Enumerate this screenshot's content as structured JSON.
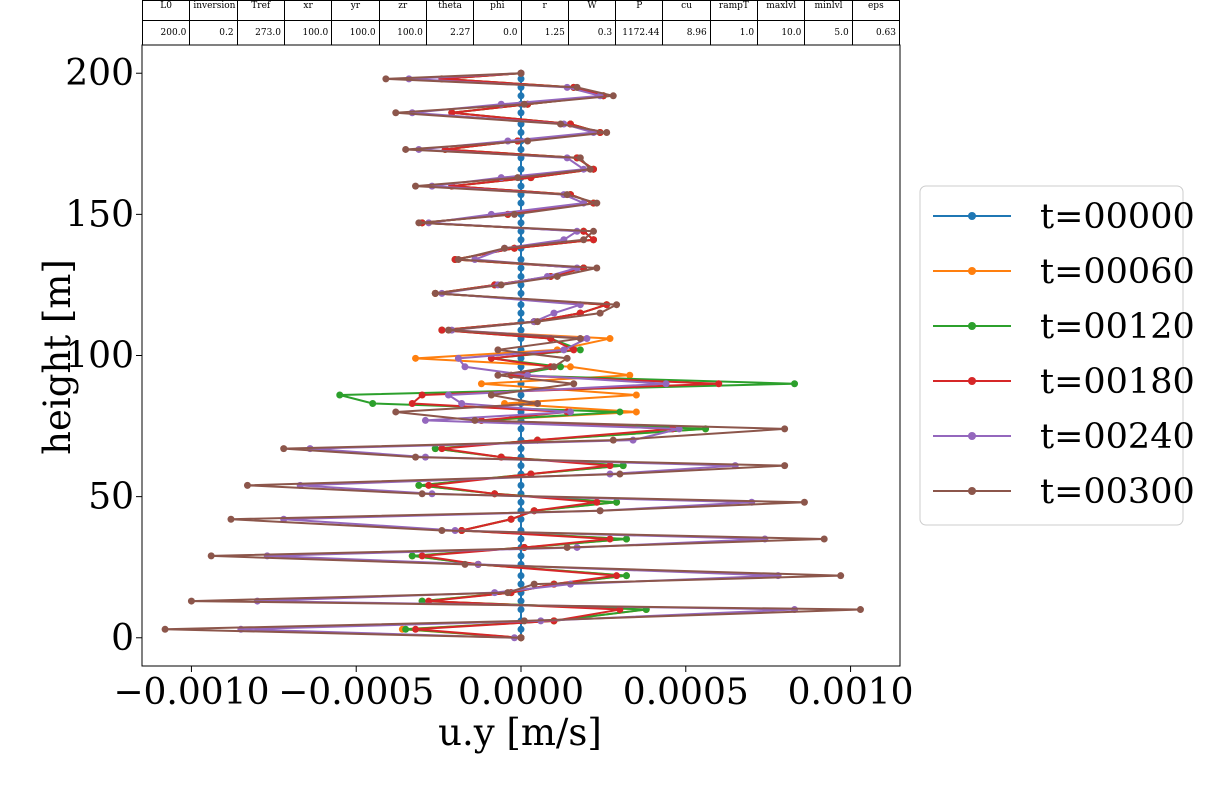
{
  "params": {
    "headers": [
      "L0",
      "inversion",
      "Tref",
      "xr",
      "yr",
      "zr",
      "theta",
      "phi",
      "r",
      "W",
      "P",
      "cu",
      "rampT",
      "maxlvl",
      "minlvl",
      "eps"
    ],
    "values": [
      "200.0",
      "0.2",
      "273.0",
      "100.0",
      "100.0",
      "100.0",
      "2.27",
      "0.0",
      "1.25",
      "0.3",
      "1172.44",
      "8.96",
      "1.0",
      "10.0",
      "5.0",
      "0.63"
    ]
  },
  "chart_data": {
    "type": "line",
    "title": "",
    "xlabel": "u.y [m/s]",
    "ylabel": "height [m]",
    "xlim": [
      -0.00115,
      0.00115
    ],
    "ylim": [
      -10,
      210
    ],
    "xticks": [
      -0.001,
      -0.0005,
      0.0,
      0.0005,
      0.001
    ],
    "xtick_labels": [
      "−0.0010",
      "−0.0005",
      "0.0000",
      "0.0005",
      "0.0010"
    ],
    "yticks": [
      0,
      50,
      100,
      150,
      200
    ],
    "ytick_labels": [
      "0",
      "50",
      "100",
      "150",
      "200"
    ],
    "grid": false,
    "legend_position": "outside-right",
    "y": [
      0,
      3,
      6,
      10,
      13,
      16,
      19,
      22,
      26,
      29,
      32,
      35,
      38,
      42,
      45,
      48,
      51,
      54,
      58,
      61,
      64,
      67,
      70,
      74,
      77,
      80,
      83,
      86,
      90,
      93,
      96,
      99,
      102,
      106,
      109,
      112,
      115,
      118,
      122,
      125,
      128,
      131,
      134,
      138,
      141,
      144,
      147,
      150,
      154,
      157,
      160,
      163,
      166,
      170,
      173,
      176,
      179,
      182,
      186,
      189,
      192,
      195,
      198,
      200
    ],
    "series": [
      {
        "name": "t=00000",
        "color": "#1f77b4",
        "x": [
          0,
          0,
          0,
          0,
          0,
          0,
          0,
          0,
          0,
          0,
          0,
          0,
          0,
          0,
          0,
          0,
          0,
          0,
          0,
          0,
          0,
          0,
          0,
          0,
          0,
          0,
          0,
          0,
          0,
          0,
          0,
          0,
          0,
          0,
          0,
          0,
          0,
          0,
          0,
          0,
          0,
          0,
          0,
          0,
          0,
          0,
          0,
          0,
          0,
          0,
          0,
          0,
          0,
          0,
          0,
          0,
          0,
          0,
          0,
          0,
          0,
          0,
          0,
          0
        ]
      },
      {
        "name": "t=00060",
        "color": "#ff7f0e",
        "x": [
          0.0,
          -0.00036,
          0.0001,
          0.00038,
          -0.0003,
          -3e-05,
          0.0001,
          0.00032,
          -0.00013,
          -0.00033,
          1e-05,
          0.00032,
          -0.00018,
          -3e-05,
          4e-05,
          0.00029,
          -8e-05,
          -0.00031,
          3e-05,
          0.00031,
          -6e-05,
          -0.00026,
          5e-05,
          0.00056,
          -0.00012,
          0.00035,
          -5e-05,
          0.00035,
          -0.00012,
          0.00033,
          0.00015,
          -0.00032,
          0.00011,
          0.00027,
          -0.00024,
          4e-05,
          0.00018,
          0.00026,
          -0.00026,
          -8e-05,
          9e-05,
          0.00019,
          -0.0002,
          -2e-05,
          0.00022,
          0.00019,
          -0.0003,
          -4e-05,
          0.00022,
          0.00015,
          -0.00021,
          3e-05,
          0.00022,
          0.00017,
          -0.00023,
          -1e-05,
          0.00024,
          0.00015,
          -0.00021,
          2e-05,
          0.00025,
          0.00016,
          -0.00024,
          0.0
        ]
      },
      {
        "name": "t=00120",
        "color": "#2ca02c",
        "x": [
          0.0,
          -0.00035,
          0.0001,
          0.00038,
          -0.0003,
          -3e-05,
          0.0001,
          0.00032,
          -0.00013,
          -0.00033,
          1e-05,
          0.00032,
          -0.00018,
          -3e-05,
          4e-05,
          0.00029,
          -8e-05,
          -0.00031,
          3e-05,
          0.00031,
          -6e-05,
          -0.00026,
          5e-05,
          0.00056,
          -0.00012,
          0.0003,
          -0.00045,
          -0.00055,
          0.00083,
          -3e-05,
          0.00012,
          -9e-05,
          0.00018,
          9e-05,
          -0.00024,
          4e-05,
          0.00018,
          0.00026,
          -0.00026,
          -8e-05,
          9e-05,
          0.00019,
          -0.0002,
          -2e-05,
          0.00022,
          0.00019,
          -0.0003,
          -4e-05,
          0.00022,
          0.00015,
          -0.00021,
          3e-05,
          0.00022,
          0.00017,
          -0.00023,
          -1e-05,
          0.00024,
          0.00015,
          -0.00021,
          2e-05,
          0.00025,
          0.00016,
          -0.00024,
          0.0
        ]
      },
      {
        "name": "t=00180",
        "color": "#d62728",
        "x": [
          0.0,
          -0.00032,
          0.0001,
          0.0003,
          -0.00028,
          -3e-05,
          0.0001,
          0.00029,
          -0.00013,
          -0.0003,
          1e-05,
          0.00027,
          -0.00018,
          -3e-05,
          4e-05,
          0.00023,
          -8e-05,
          -0.00028,
          3e-05,
          0.00027,
          -6e-05,
          -0.00024,
          5e-05,
          0.00046,
          -0.00012,
          0.00014,
          -0.00033,
          -0.0003,
          0.0006,
          -3e-05,
          9e-05,
          -9e-05,
          0.00016,
          9e-05,
          -0.00024,
          4e-05,
          0.00018,
          0.00026,
          -0.00026,
          -8e-05,
          9e-05,
          0.00019,
          -0.0002,
          -2e-05,
          0.00022,
          0.00019,
          -0.0003,
          -4e-05,
          0.00022,
          0.00015,
          -0.00021,
          3e-05,
          0.00022,
          0.00017,
          -0.00023,
          -1e-05,
          0.00024,
          0.00015,
          -0.00021,
          2e-05,
          0.00025,
          0.00016,
          -0.00024,
          0.0
        ]
      },
      {
        "name": "t=00240",
        "color": "#9467bd",
        "x": [
          -2e-05,
          -0.00085,
          6e-05,
          0.00083,
          -0.0008,
          -8e-05,
          0.00015,
          0.00078,
          -0.00013,
          -0.00077,
          0.00017,
          0.00074,
          -0.0002,
          -0.00072,
          0.00024,
          0.0007,
          -0.00027,
          -0.00067,
          0.00027,
          0.00065,
          -0.00029,
          -0.00064,
          0.00034,
          0.00048,
          -0.00029,
          0.00015,
          -0.00018,
          -0.00022,
          0.00044,
          2e-05,
          -0.00017,
          -0.00019,
          0.00013,
          0.0002,
          -0.00021,
          4e-05,
          0.0001,
          0.00018,
          -0.00024,
          -7e-05,
          8e-05,
          0.00017,
          -0.00014,
          -5e-05,
          0.00013,
          0.00017,
          -0.00028,
          -9e-05,
          0.00019,
          0.00013,
          -0.00027,
          -6e-05,
          0.00019,
          0.00014,
          -0.00031,
          -4e-05,
          0.00022,
          0.00013,
          -0.00033,
          -6e-05,
          0.00024,
          0.00014,
          -0.00034,
          0.0
        ]
      },
      {
        "name": "t=00300",
        "color": "#8c564b",
        "x": [
          0.0,
          -0.00108,
          1e-05,
          0.00103,
          -0.001,
          -4e-05,
          4e-05,
          0.00097,
          -0.00017,
          -0.00094,
          0.00014,
          0.00092,
          -0.00024,
          -0.00088,
          0.00024,
          0.00086,
          -0.0003,
          -0.00083,
          0.0003,
          0.0008,
          -0.00032,
          -0.00072,
          0.00028,
          0.0008,
          -0.00014,
          -0.00038,
          5e-05,
          -9e-05,
          0.00016,
          -7e-05,
          0.0001,
          0.00014,
          -7e-05,
          0.00018,
          -0.00022,
          5e-05,
          0.00024,
          0.00029,
          -0.00026,
          -6e-05,
          0.00011,
          0.00023,
          -0.00019,
          -5e-05,
          0.00019,
          0.00022,
          -0.00031,
          -2e-05,
          0.00023,
          0.00014,
          -0.00032,
          -1e-05,
          0.00021,
          0.00018,
          -0.00035,
          2e-05,
          0.00026,
          0.00012,
          -0.00038,
          1e-05,
          0.00028,
          0.00017,
          -0.00041,
          0.0
        ]
      }
    ]
  }
}
